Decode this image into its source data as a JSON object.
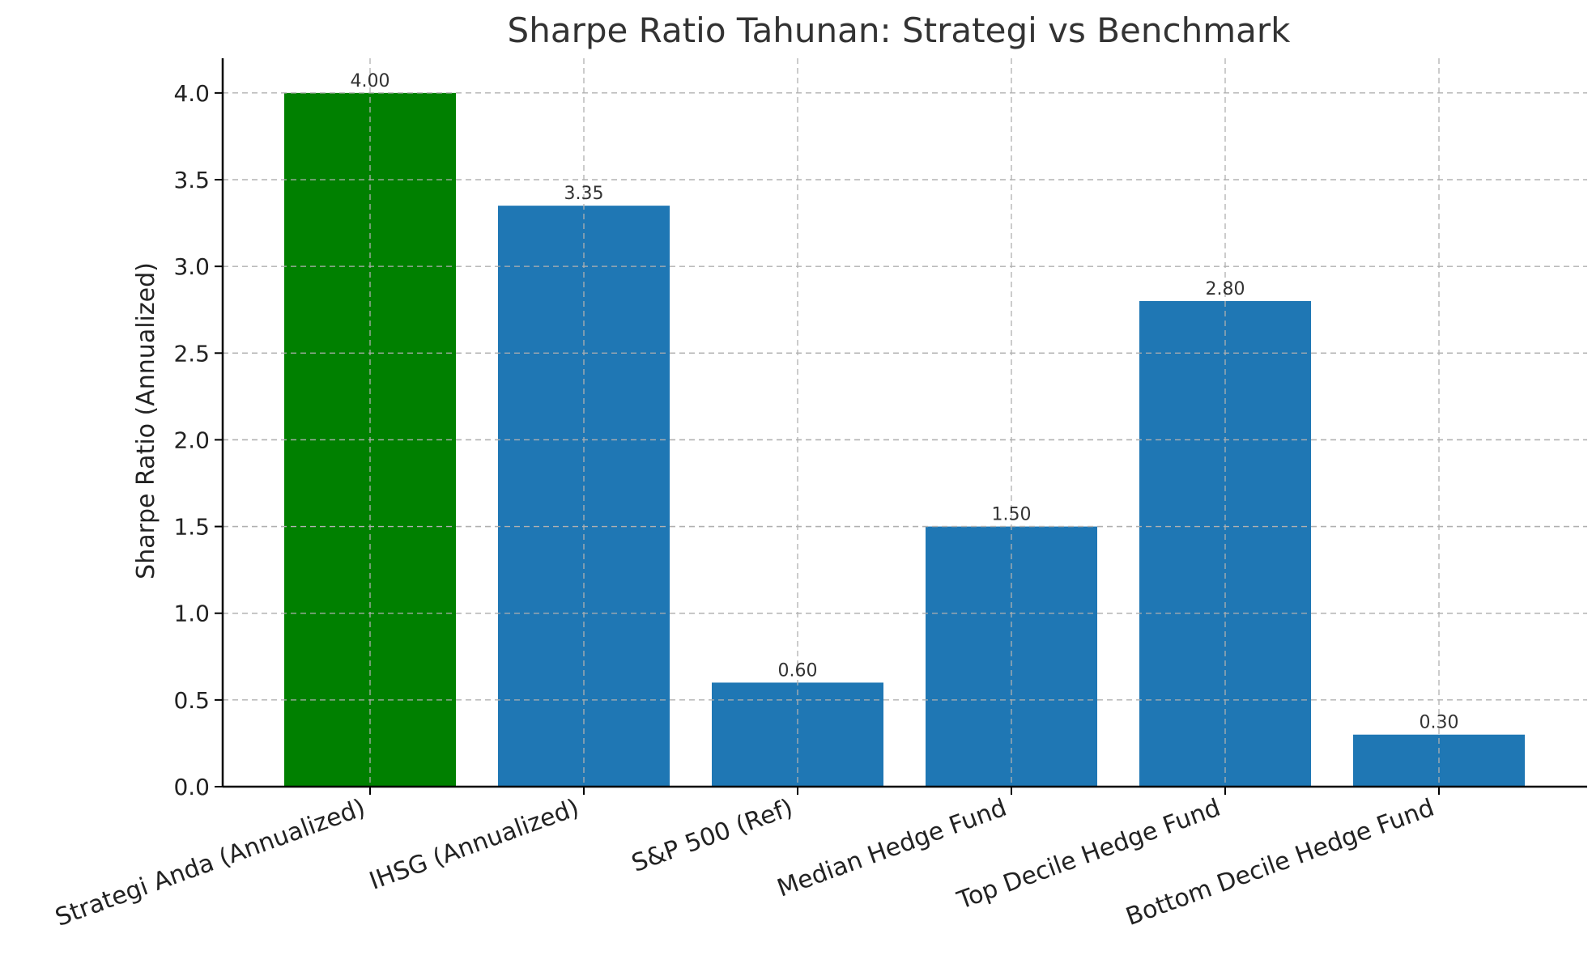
{
  "chart_data": {
    "type": "bar",
    "title": "Sharpe Ratio Tahunan: Strategi vs Benchmark",
    "xlabel": "",
    "ylabel": "Sharpe Ratio (Annualized)",
    "categories": [
      "Strategi Anda (Annualized)",
      "IHSG (Annualized)",
      "S&P 500 (Ref)",
      "Median Hedge Fund",
      "Top Decile Hedge Fund",
      "Bottom Decile Hedge Fund"
    ],
    "values": [
      4.0,
      3.35,
      0.6,
      1.5,
      2.8,
      0.3
    ],
    "value_labels": [
      "4.00",
      "3.35",
      "0.60",
      "1.50",
      "2.80",
      "0.30"
    ],
    "bar_colors": [
      "#008000",
      "#1f77b4",
      "#1f77b4",
      "#1f77b4",
      "#1f77b4",
      "#1f77b4"
    ],
    "yticks": [
      "0.0",
      "0.5",
      "1.0",
      "1.5",
      "2.0",
      "2.5",
      "3.0",
      "3.5",
      "4.0"
    ],
    "ylim": [
      0,
      4.2
    ],
    "grid": true,
    "legend": "none"
  }
}
